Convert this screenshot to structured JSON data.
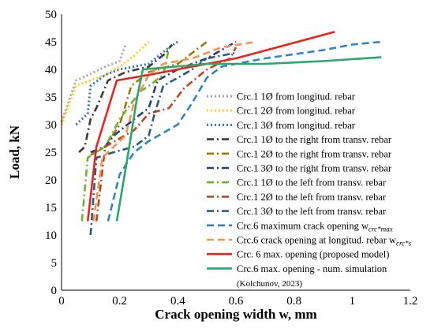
{
  "chart_data": {
    "type": "line",
    "xlabel": "Crack opening width w, mm",
    "ylabel": "Load, kN",
    "xlim": [
      0,
      1.2
    ],
    "ylim": [
      0,
      50
    ],
    "xticks": [
      0,
      0.2,
      0.4,
      0.6,
      0.8,
      1,
      1.2
    ],
    "xtick_labels": [
      "0",
      "0.2",
      "0.4",
      "0.6",
      "0.8",
      "1",
      "1.2"
    ],
    "yticks": [
      0,
      5,
      10,
      15,
      20,
      25,
      30,
      35,
      40,
      45,
      50
    ],
    "ytick_labels": [
      "0",
      "5",
      "10",
      "15",
      "20",
      "25",
      "30",
      "35",
      "40",
      "45",
      "50"
    ],
    "grid": false,
    "legend_position": "right",
    "series": [
      {
        "name": "Crc.1 1Ø from longitud. rebar",
        "color": "#a6a6a6",
        "dash": "dot",
        "points": [
          [
            0.0,
            30.5
          ],
          [
            0.03,
            35
          ],
          [
            0.05,
            38
          ],
          [
            0.1,
            39.2
          ],
          [
            0.15,
            40.5
          ],
          [
            0.2,
            41.5
          ],
          [
            0.22,
            44.5
          ]
        ]
      },
      {
        "name": "Crc.1 2Ø from longitud. rebar",
        "color": "#ffd11a",
        "dash": "dot",
        "points": [
          [
            0.0,
            30
          ],
          [
            0.05,
            37
          ],
          [
            0.1,
            38
          ],
          [
            0.15,
            39
          ],
          [
            0.2,
            40.5
          ],
          [
            0.25,
            42.5
          ],
          [
            0.3,
            45
          ]
        ]
      },
      {
        "name": "Crc.1 3Ø from longitud. rebar",
        "color": "#2e75b6",
        "dash": "dot",
        "points": [
          [
            0.05,
            30
          ],
          [
            0.09,
            32
          ],
          [
            0.1,
            37
          ],
          [
            0.15,
            39
          ],
          [
            0.2,
            40
          ],
          [
            0.3,
            41
          ],
          [
            0.37,
            44
          ],
          [
            0.4,
            45
          ]
        ]
      },
      {
        "name": "Crc.1 1Ø to the right from transv. rebar",
        "color": "#3a3a3a",
        "dash": "dashdot",
        "points": [
          [
            0.06,
            25
          ],
          [
            0.08,
            26
          ],
          [
            0.1,
            31
          ],
          [
            0.12,
            33
          ],
          [
            0.16,
            38
          ],
          [
            0.22,
            39.5
          ],
          [
            0.3,
            40.5
          ],
          [
            0.36,
            43
          ],
          [
            0.38,
            44.5
          ]
        ]
      },
      {
        "name": "Crc.1 2Ø to the right from transv. rebar",
        "color": "#9c7a00",
        "dash": "dashdot",
        "points": [
          [
            0.1,
            24.5
          ],
          [
            0.15,
            26
          ],
          [
            0.2,
            30
          ],
          [
            0.24,
            37
          ],
          [
            0.3,
            39.5
          ],
          [
            0.4,
            41
          ],
          [
            0.45,
            43
          ],
          [
            0.5,
            45
          ]
        ]
      },
      {
        "name": "Crc.1 3Ø to the right from transv. rebar",
        "color": "#1f3f80",
        "dash": "dashdot",
        "points": [
          [
            0.1,
            25
          ],
          [
            0.15,
            26
          ],
          [
            0.18,
            28
          ],
          [
            0.25,
            31
          ],
          [
            0.3,
            33
          ],
          [
            0.33,
            38
          ],
          [
            0.4,
            40
          ],
          [
            0.5,
            42
          ],
          [
            0.6,
            45
          ]
        ]
      },
      {
        "name": "Crc.1 1Ø to the left from transv. rebar",
        "color": "#70b030",
        "dash": "dashdot",
        "points": [
          [
            0.07,
            12.5
          ],
          [
            0.09,
            24
          ],
          [
            0.15,
            26
          ],
          [
            0.2,
            31
          ],
          [
            0.27,
            36
          ],
          [
            0.3,
            37
          ],
          [
            0.35,
            39
          ],
          [
            0.37,
            44
          ]
        ]
      },
      {
        "name": "Crc.1 2Ø to the left from transv. rebar",
        "color": "#c0441a",
        "dash": "dashdot",
        "points": [
          [
            0.12,
            12.5
          ],
          [
            0.15,
            26
          ],
          [
            0.2,
            27.5
          ],
          [
            0.25,
            29
          ],
          [
            0.3,
            32
          ],
          [
            0.37,
            33
          ],
          [
            0.42,
            36.5
          ],
          [
            0.5,
            40
          ],
          [
            0.58,
            42
          ],
          [
            0.6,
            44
          ]
        ]
      },
      {
        "name": "Crc.1 3Ø to the left from transv. rebar",
        "color": "#235f7a",
        "dash": "dashdot",
        "points": [
          [
            0.1,
            10
          ],
          [
            0.12,
            24
          ],
          [
            0.18,
            25
          ],
          [
            0.25,
            26
          ],
          [
            0.3,
            28
          ],
          [
            0.32,
            32
          ],
          [
            0.35,
            37
          ],
          [
            0.45,
            40
          ],
          [
            0.5,
            42
          ],
          [
            0.6,
            43
          ]
        ]
      },
      {
        "name": "Crc.6 maximum crack opening w",
        "color": "#2e86c1",
        "dash": "dash",
        "points": [
          [
            0.16,
            12.5
          ],
          [
            0.2,
            21
          ],
          [
            0.25,
            25
          ],
          [
            0.3,
            27
          ],
          [
            0.4,
            30
          ],
          [
            0.45,
            34
          ],
          [
            0.5,
            38.5
          ],
          [
            0.55,
            40.5
          ],
          [
            0.7,
            42
          ],
          [
            0.9,
            43.5
          ],
          [
            1.0,
            44.5
          ],
          [
            1.1,
            45
          ]
        ]
      },
      {
        "name": "Crc.6 crack opening at longitud. rebar w",
        "color": "#f4934f",
        "dash": "dash",
        "points": [
          [
            0.11,
            12.5
          ],
          [
            0.14,
            24
          ],
          [
            0.18,
            26
          ],
          [
            0.22,
            28
          ],
          [
            0.25,
            34
          ],
          [
            0.3,
            39
          ],
          [
            0.35,
            41
          ],
          [
            0.45,
            42
          ],
          [
            0.55,
            44
          ],
          [
            0.67,
            45
          ]
        ]
      },
      {
        "name": "Crc. 6 max. opening (proposed model)",
        "color": "#e8241d",
        "dash": "solid",
        "points": [
          [
            0.09,
            12.5
          ],
          [
            0.12,
            26
          ],
          [
            0.19,
            38
          ],
          [
            0.3,
            39
          ],
          [
            0.4,
            40
          ],
          [
            0.6,
            42
          ],
          [
            0.94,
            46.8
          ]
        ]
      },
      {
        "name": "Crc.6 max. opening - num. simulation (Kolchunov, 2023)",
        "color": "#2aa66a",
        "dash": "solid",
        "points": [
          [
            0.19,
            12.5
          ],
          [
            0.23,
            25
          ],
          [
            0.26,
            35
          ],
          [
            0.28,
            40
          ],
          [
            0.5,
            41
          ],
          [
            0.7,
            41
          ],
          [
            0.9,
            41.5
          ],
          [
            1.1,
            42.2
          ]
        ]
      }
    ]
  },
  "legend": [
    {
      "label": "Crc.1 1Ø from longitud. rebar",
      "sub": ""
    },
    {
      "label": "Crc.1 2Ø from longitud. rebar",
      "sub": ""
    },
    {
      "label": "Crc.1 3Ø from longitud. rebar",
      "sub": ""
    },
    {
      "label": "Crc.1 1Ø to the right from transv. rebar",
      "sub": ""
    },
    {
      "label": "Crc.1 2Ø to the right from transv. rebar",
      "sub": ""
    },
    {
      "label": "Crc.1 3Ø to the right from transv. rebar",
      "sub": ""
    },
    {
      "label": "Crc.1 1Ø to the left from transv. rebar",
      "sub": ""
    },
    {
      "label": "Crc.1 2Ø to the left from transv. rebar",
      "sub": ""
    },
    {
      "label": "Crc.1 3Ø to the left from transv. rebar",
      "sub": ""
    },
    {
      "label": "Crc.6 maximum crack opening w",
      "sub": "crc*max"
    },
    {
      "label": "Crc.6 crack opening at longitud. rebar w",
      "sub": "crc*s"
    },
    {
      "label": "Crc. 6 max. opening (proposed model)",
      "sub": ""
    },
    {
      "label": "Crc.6 max. opening - num. simulation",
      "sub": ""
    },
    {
      "label": "(Kolchunov, 2023)",
      "sub": ""
    }
  ]
}
